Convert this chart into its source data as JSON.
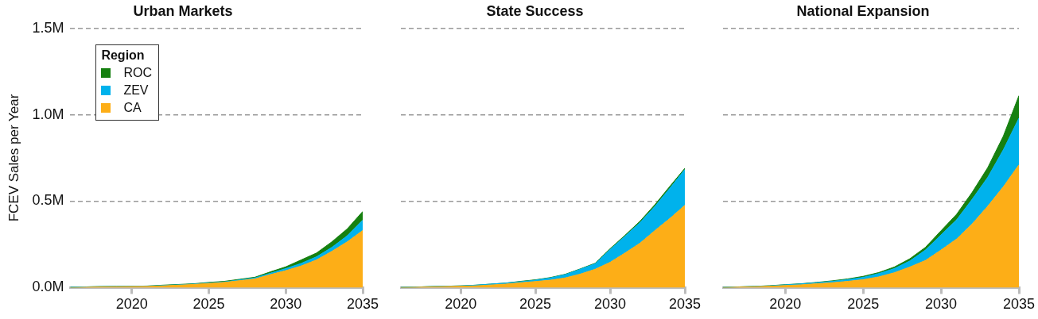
{
  "chart_data": [
    {
      "type": "area",
      "title": "Urban Markets",
      "ylabel": "FCEV Sales per Year",
      "legend_title": "Region",
      "legend": "top left",
      "stacked": true,
      "grid": "y",
      "marker": "none",
      "x": [
        2016,
        2017,
        2018,
        2019,
        2020,
        2021,
        2022,
        2023,
        2024,
        2025,
        2026,
        2027,
        2028,
        2029,
        2030,
        2031,
        2032,
        2033,
        2034,
        2035
      ],
      "xlim": [
        2016,
        2035
      ],
      "xticks": [
        2020,
        2025,
        2030,
        2035
      ],
      "ylim": [
        0,
        1.5
      ],
      "yticks": [
        {
          "value": 0,
          "label": "0.0M"
        },
        {
          "value": 0.5,
          "label": "0.5M"
        },
        {
          "value": 1.0,
          "label": "1.0M"
        },
        {
          "value": 1.5,
          "label": "1.5M"
        }
      ],
      "series": [
        {
          "name": "CA",
          "color": "#fdae17",
          "values": [
            0,
            0.002,
            0.004,
            0.005,
            0.006,
            0.007,
            0.01,
            0.014,
            0.018,
            0.024,
            0.03,
            0.04,
            0.05,
            0.075,
            0.098,
            0.125,
            0.16,
            0.21,
            0.265,
            0.33
          ]
        },
        {
          "name": "ZEV",
          "color": "#00b2ec",
          "values": [
            0.002,
            0.002,
            0.002,
            0.002,
            0.002,
            0.002,
            0.002,
            0.002,
            0.002,
            0.003,
            0.003,
            0.004,
            0.006,
            0.008,
            0.012,
            0.015,
            0.018,
            0.023,
            0.035,
            0.06
          ]
        },
        {
          "name": "ROC",
          "color": "#168010",
          "values": [
            0,
            0,
            0,
            0,
            0,
            0,
            0.002,
            0.002,
            0.002,
            0.003,
            0.003,
            0.004,
            0.004,
            0.008,
            0.01,
            0.02,
            0.022,
            0.032,
            0.04,
            0.05
          ]
        }
      ]
    },
    {
      "type": "area",
      "title": "State Success",
      "stacked": true,
      "grid": "y",
      "marker": "none",
      "tick_labels": "x",
      "x": [
        2016,
        2017,
        2018,
        2019,
        2020,
        2021,
        2022,
        2023,
        2024,
        2025,
        2026,
        2027,
        2028,
        2029,
        2030,
        2031,
        2032,
        2033,
        2034,
        2035
      ],
      "xlim": [
        2016,
        2035
      ],
      "xticks": [
        2020,
        2025,
        2030,
        2035
      ],
      "ylim": [
        0,
        1.5
      ],
      "yticks": [
        0,
        0.5,
        1.0,
        1.5
      ],
      "series": [
        {
          "color": "#fdae17",
          "values": [
            0,
            0.002,
            0.004,
            0.006,
            0.008,
            0.01,
            0.015,
            0.02,
            0.028,
            0.035,
            0.043,
            0.056,
            0.078,
            0.106,
            0.146,
            0.2,
            0.257,
            0.33,
            0.4,
            0.476
          ]
        },
        {
          "color": "#00b2ec",
          "values": [
            0.001,
            0.001,
            0.002,
            0.002,
            0.002,
            0.004,
            0.005,
            0.006,
            0.006,
            0.008,
            0.013,
            0.019,
            0.028,
            0.032,
            0.074,
            0.097,
            0.119,
            0.14,
            0.175,
            0.207
          ]
        },
        {
          "color": "#168010",
          "values": [
            0,
            0,
            0,
            0,
            0,
            0,
            0,
            0,
            0.002,
            0.002,
            0.002,
            0.002,
            0.002,
            0.003,
            0.005,
            0.006,
            0.008,
            0.01,
            0.011,
            0.007
          ]
        }
      ]
    },
    {
      "type": "area",
      "title": "National Expansion",
      "stacked": true,
      "grid": "y",
      "marker": "none",
      "tick_labels": "x",
      "x": [
        2016,
        2017,
        2018,
        2019,
        2020,
        2021,
        2022,
        2023,
        2024,
        2025,
        2026,
        2027,
        2028,
        2029,
        2030,
        2031,
        2032,
        2033,
        2034,
        2035
      ],
      "xlim": [
        2016,
        2035
      ],
      "xticks": [
        2020,
        2025,
        2030,
        2035
      ],
      "ylim": [
        0,
        1.5
      ],
      "yticks": [
        0,
        0.5,
        1.0,
        1.5
      ],
      "series": [
        {
          "color": "#fdae17",
          "values": [
            0,
            0.003,
            0.005,
            0.008,
            0.012,
            0.016,
            0.022,
            0.028,
            0.036,
            0.046,
            0.062,
            0.086,
            0.119,
            0.157,
            0.217,
            0.281,
            0.368,
            0.471,
            0.583,
            0.71
          ]
        },
        {
          "color": "#00b2ec",
          "values": [
            0.001,
            0.001,
            0.002,
            0.002,
            0.004,
            0.005,
            0.006,
            0.008,
            0.01,
            0.013,
            0.019,
            0.024,
            0.035,
            0.06,
            0.088,
            0.111,
            0.143,
            0.167,
            0.214,
            0.27
          ]
        },
        {
          "color": "#168010",
          "values": [
            0,
            0,
            0,
            0.001,
            0.001,
            0.001,
            0.002,
            0.003,
            0.004,
            0.006,
            0.006,
            0.009,
            0.013,
            0.016,
            0.024,
            0.032,
            0.04,
            0.056,
            0.079,
            0.13
          ]
        }
      ]
    }
  ]
}
